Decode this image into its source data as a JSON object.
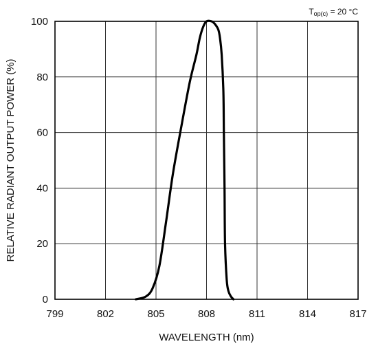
{
  "chart_data": {
    "type": "line",
    "xlabel": "WAVELENGTH (nm)",
    "ylabel": "RELATIVE RADIANT OUTPUT POWER (%)",
    "annotation": {
      "main": "T",
      "sub": "op(c)",
      "rest": " = 20 °C"
    },
    "x_ticks": [
      "799",
      "802",
      "805",
      "808",
      "811",
      "814",
      "817"
    ],
    "y_ticks": [
      "0",
      "20",
      "40",
      "60",
      "80",
      "100"
    ],
    "xlim": [
      799,
      817
    ],
    "ylim": [
      0,
      100
    ],
    "grid": true,
    "series": [
      {
        "x": [
          803.8,
          804.4,
          804.8,
          805.2,
          805.6,
          806.0,
          806.5,
          807.0,
          807.4,
          807.6,
          807.8,
          808.0,
          808.3,
          808.5,
          808.7,
          808.8,
          808.9,
          809.0,
          809.03,
          809.07,
          809.1,
          809.2,
          809.3,
          809.45,
          809.6
        ],
        "y": [
          0,
          1,
          4,
          12,
          28,
          45,
          62,
          78,
          88,
          94,
          98,
          100,
          100,
          99,
          97,
          94,
          88,
          75,
          60,
          40,
          20,
          7,
          3,
          1,
          0
        ]
      }
    ],
    "colors": {
      "line": "#000000",
      "grid": "#333333",
      "frame": "#000000"
    }
  }
}
